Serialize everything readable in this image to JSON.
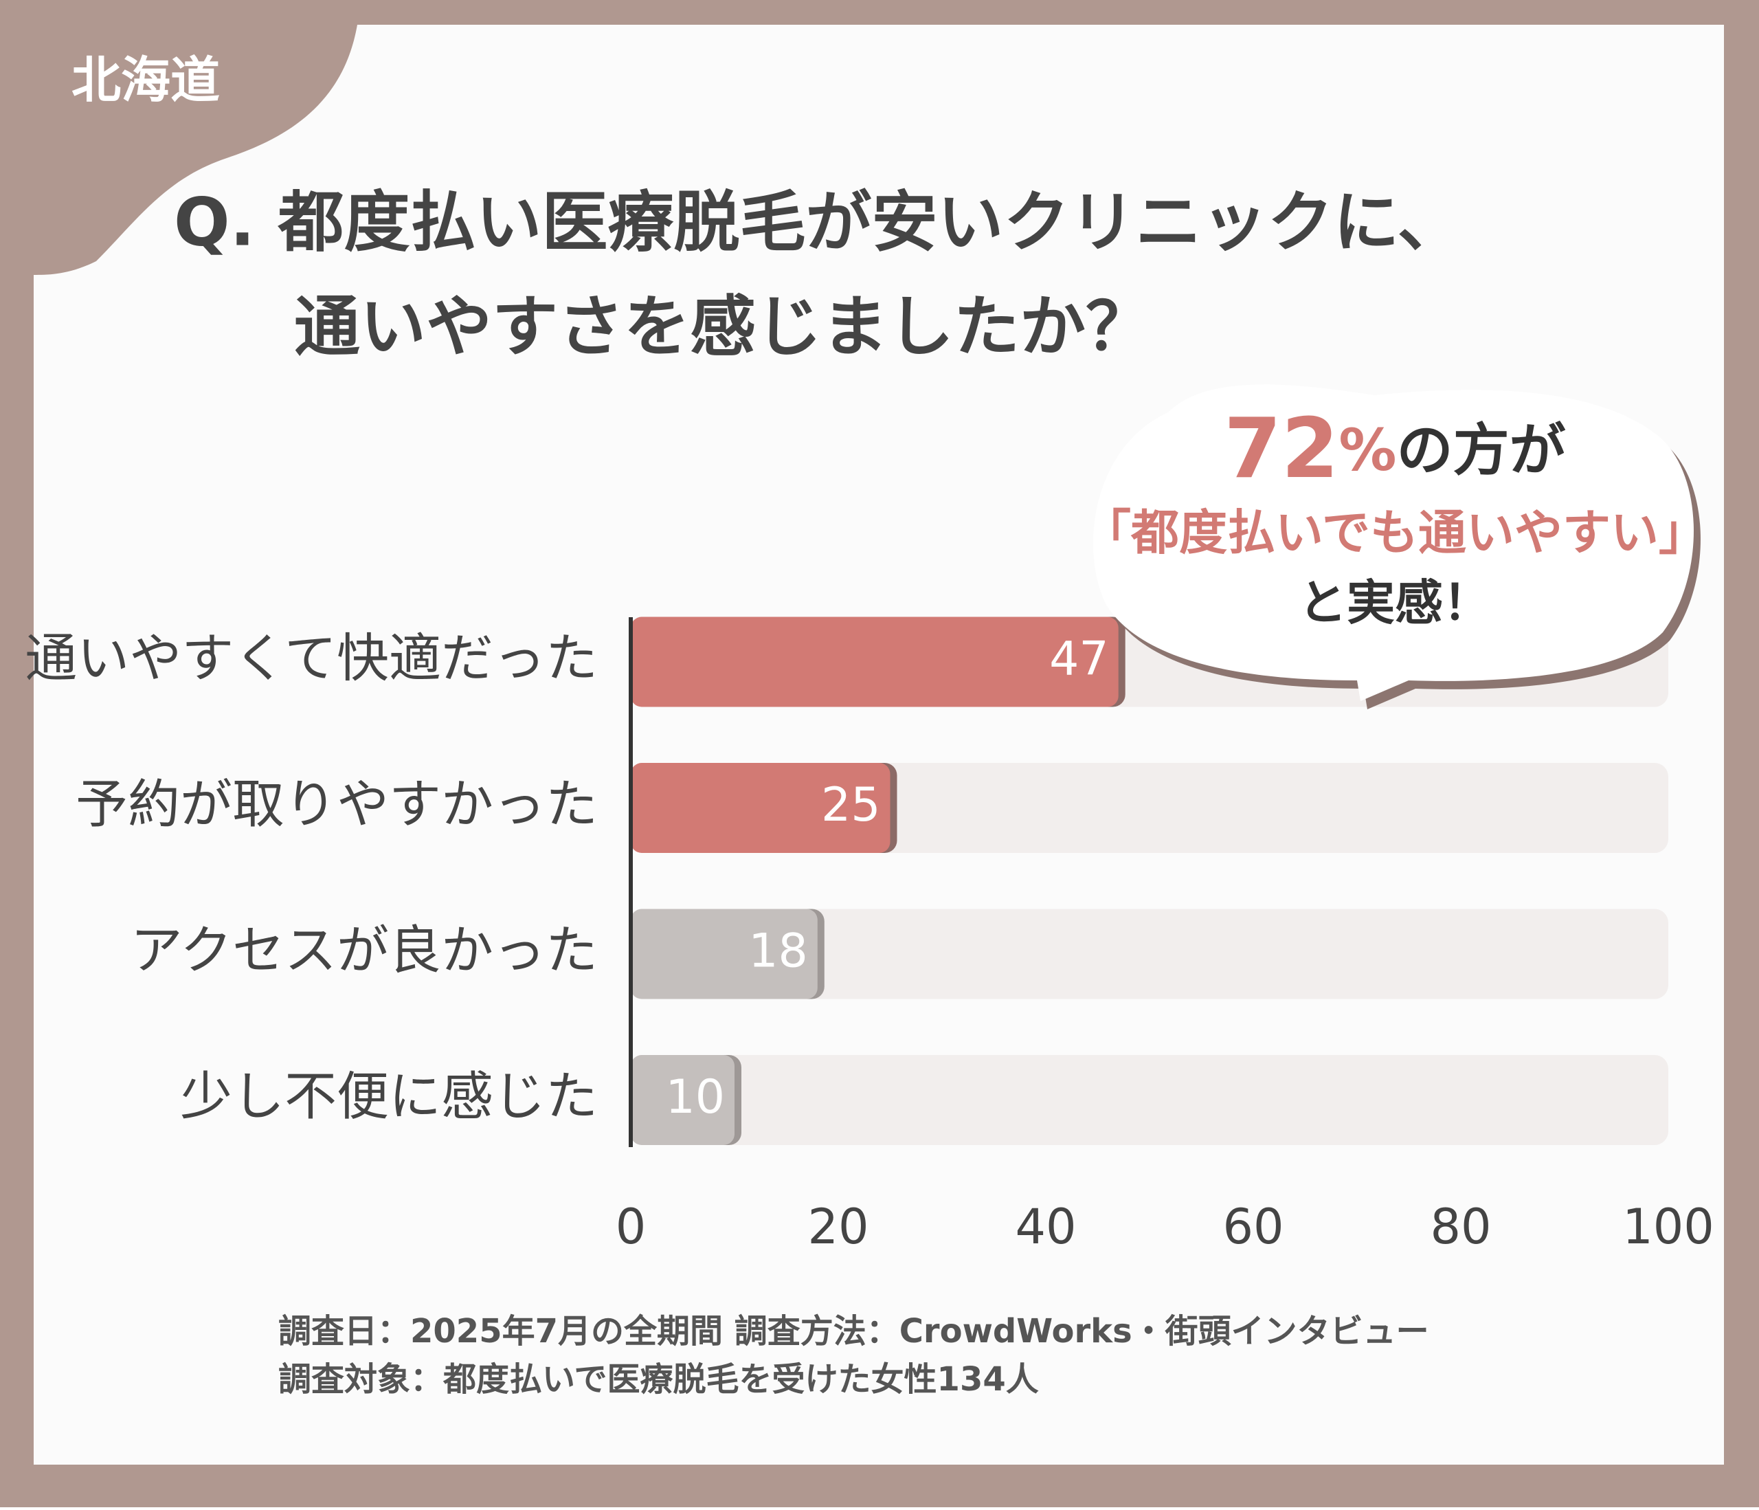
{
  "tag": "北海道",
  "title_lines": [
    "Q. 都度払い医療脱毛が安いクリニックに、",
    "通いやすさを感じましたか？"
  ],
  "callout": {
    "highlight": "72",
    "highlight_unit": "%",
    "line1_rest": "の方が",
    "line2": "「都度払いでも通いやすい」",
    "line3": "と実感！"
  },
  "chart_data": {
    "type": "hbar",
    "categories": [
      "通いやすくて快適だった",
      "予約が取りやすかった",
      "アクセスが良かった",
      "少し不便に感じた"
    ],
    "values": [
      47,
      25,
      18,
      10
    ],
    "colors": [
      "#d27a74",
      "#d27a74",
      "#c4bfbd",
      "#c4bfbd"
    ],
    "xlim": [
      0,
      100
    ],
    "xticks": [
      0,
      20,
      40,
      60,
      80,
      100
    ]
  },
  "footer_lines": [
    "調査日：2025年7月の全期間 調査方法：CrowdWorks・街頭インタビュー",
    "調査対象：都度払いで医療脱毛を受けた女性134人"
  ]
}
